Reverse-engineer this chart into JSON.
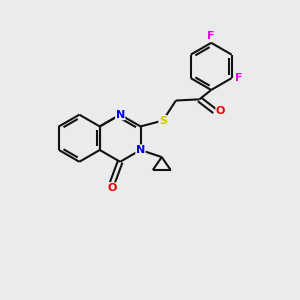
{
  "background_color": "#ebebeb",
  "bond_color": "#111111",
  "atom_colors": {
    "N": "#0000ee",
    "O": "#ee0000",
    "S": "#cccc00",
    "F": "#ee00ee"
  },
  "figsize": [
    3.0,
    3.0
  ],
  "dpi": 100
}
